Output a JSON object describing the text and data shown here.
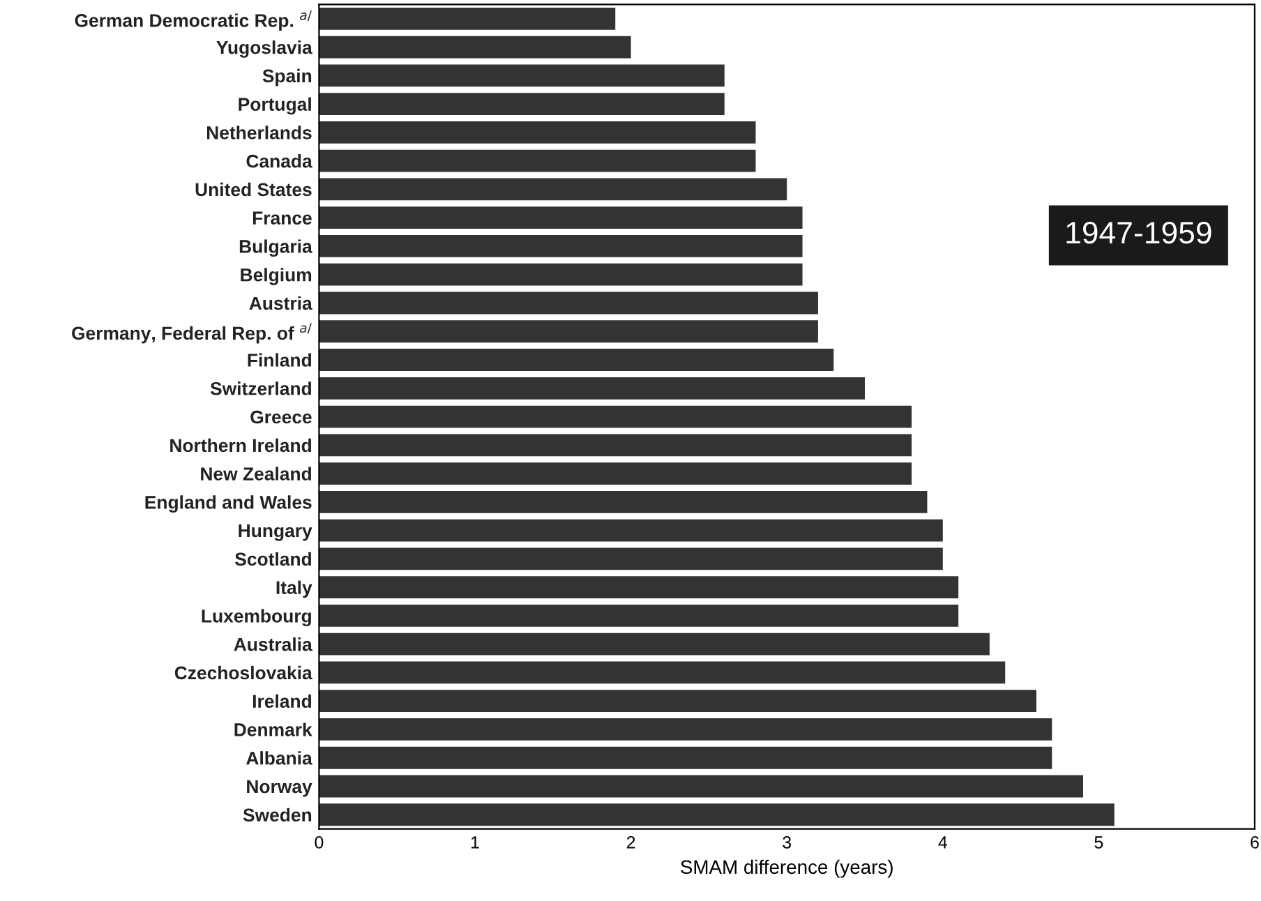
{
  "chart_data": {
    "type": "bar",
    "orientation": "horizontal",
    "xlabel": "SMAM difference (years)",
    "categories": [
      "German Democratic Rep. $^{a/}$",
      "Yugoslavia",
      "Spain",
      "Portugal",
      "Netherlands",
      "Canada",
      "United States",
      "France",
      "Bulgaria",
      "Belgium",
      "Austria",
      "Germany, Federal Rep. of $^{a/}$",
      "Finland",
      "Switzerland",
      "Greece",
      "Northern Ireland",
      "New Zealand",
      "England and Wales",
      "Hungary",
      "Scotland",
      "Italy",
      "Luxembourg",
      "Australia",
      "Czechoslovakia",
      "Ireland",
      "Denmark",
      "Albania",
      "Norway",
      "Sweden"
    ],
    "values": [
      1.9,
      2.0,
      2.6,
      2.6,
      2.8,
      2.8,
      3.0,
      3.1,
      3.1,
      3.1,
      3.2,
      3.2,
      3.3,
      3.5,
      3.8,
      3.8,
      3.8,
      3.9,
      4.0,
      4.0,
      4.1,
      4.1,
      4.3,
      4.4,
      4.6,
      4.7,
      4.7,
      4.9,
      5.1
    ],
    "color": "#333333",
    "xlim": [
      0,
      6
    ],
    "xticks": [
      0,
      1,
      2,
      3,
      4,
      5,
      6
    ],
    "grid": false,
    "annotations": [
      "1947-1959"
    ]
  }
}
